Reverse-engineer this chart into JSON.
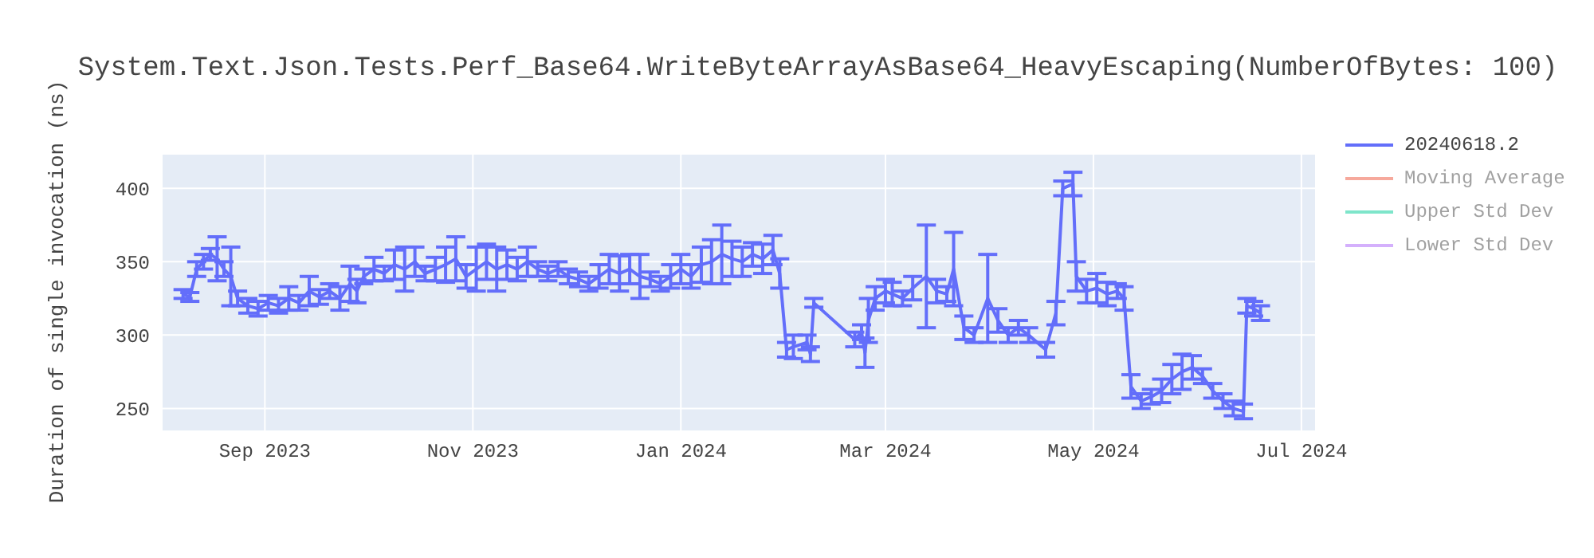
{
  "chart_data": {
    "type": "line",
    "title": "System.Text.Json.Tests.Perf_Base64.WriteByteArrayAsBase64_HeavyEscaping(NumberOfBytes: 100)",
    "ylabel": "Duration of single invocation (ns)",
    "x": [
      "2023-08-08",
      "2023-08-10",
      "2023-08-12",
      "2023-08-14",
      "2023-08-16",
      "2023-08-18",
      "2023-08-20",
      "2023-08-22",
      "2023-08-24",
      "2023-08-27",
      "2023-08-30",
      "2023-09-02",
      "2023-09-05",
      "2023-09-08",
      "2023-09-11",
      "2023-09-14",
      "2023-09-17",
      "2023-09-20",
      "2023-09-23",
      "2023-09-26",
      "2023-09-28",
      "2023-09-30",
      "2023-10-03",
      "2023-10-06",
      "2023-10-09",
      "2023-10-12",
      "2023-10-15",
      "2023-10-18",
      "2023-10-21",
      "2023-10-24",
      "2023-10-27",
      "2023-10-30",
      "2023-11-02",
      "2023-11-05",
      "2023-11-08",
      "2023-11-11",
      "2023-11-14",
      "2023-11-17",
      "2023-11-20",
      "2023-11-23",
      "2023-11-26",
      "2023-11-29",
      "2023-12-02",
      "2023-12-05",
      "2023-12-08",
      "2023-12-11",
      "2023-12-14",
      "2023-12-17",
      "2023-12-20",
      "2023-12-23",
      "2023-12-26",
      "2023-12-29",
      "2024-01-01",
      "2024-01-04",
      "2024-01-07",
      "2024-01-10",
      "2024-01-13",
      "2024-01-16",
      "2024-01-19",
      "2024-01-22",
      "2024-01-25",
      "2024-01-28",
      "2024-01-30",
      "2024-02-01",
      "2024-02-03",
      "2024-02-07",
      "2024-02-08",
      "2024-02-09",
      "2024-02-21",
      "2024-02-23",
      "2024-02-24",
      "2024-02-25",
      "2024-02-27",
      "2024-03-01",
      "2024-03-03",
      "2024-03-06",
      "2024-03-09",
      "2024-03-13",
      "2024-03-16",
      "2024-03-19",
      "2024-03-21",
      "2024-03-24",
      "2024-03-27",
      "2024-03-31",
      "2024-04-03",
      "2024-04-06",
      "2024-04-09",
      "2024-04-12",
      "2024-04-17",
      "2024-04-20",
      "2024-04-22",
      "2024-04-25",
      "2024-04-26",
      "2024-04-29",
      "2024-05-02",
      "2024-05-05",
      "2024-05-08",
      "2024-05-10",
      "2024-05-12",
      "2024-05-15",
      "2024-05-18",
      "2024-05-21",
      "2024-05-24",
      "2024-05-27",
      "2024-05-30",
      "2024-06-02",
      "2024-06-05",
      "2024-06-08",
      "2024-06-11",
      "2024-06-14",
      "2024-06-15",
      "2024-06-17",
      "2024-06-19"
    ],
    "series": [
      {
        "name": "20240618.2",
        "color": "#636efa",
        "values": [
          328,
          326,
          345,
          350,
          355,
          352,
          345,
          340,
          325,
          320,
          318,
          322,
          320,
          325,
          322,
          330,
          326,
          330,
          325,
          335,
          330,
          340,
          345,
          342,
          348,
          345,
          350,
          342,
          345,
          348,
          352,
          340,
          345,
          350,
          345,
          348,
          345,
          350,
          345,
          342,
          345,
          340,
          338,
          335,
          340,
          345,
          342,
          345,
          340,
          338,
          335,
          340,
          345,
          340,
          348,
          350,
          355,
          352,
          350,
          355,
          352,
          358,
          342,
          290,
          292,
          295,
          287,
          322,
          297,
          302,
          288,
          310,
          325,
          330,
          328,
          325,
          332,
          340,
          330,
          328,
          345,
          305,
          300,
          325,
          310,
          300,
          305,
          300,
          290,
          315,
          400,
          403,
          340,
          330,
          332,
          328,
          330,
          325,
          265,
          255,
          258,
          262,
          270,
          275,
          278,
          272,
          262,
          255,
          250,
          248,
          320,
          318,
          315
        ],
        "errors": [
          3,
          3,
          5,
          5,
          4,
          15,
          5,
          20,
          5,
          5,
          5,
          5,
          5,
          8,
          5,
          10,
          5,
          5,
          8,
          12,
          8,
          5,
          8,
          5,
          10,
          15,
          10,
          5,
          8,
          12,
          15,
          8,
          15,
          12,
          15,
          10,
          8,
          10,
          5,
          5,
          5,
          5,
          5,
          5,
          8,
          10,
          12,
          10,
          15,
          5,
          5,
          8,
          10,
          8,
          12,
          15,
          20,
          12,
          10,
          8,
          10,
          10,
          10,
          5,
          8,
          5,
          5,
          3,
          5,
          5,
          10,
          15,
          8,
          8,
          8,
          5,
          8,
          35,
          8,
          5,
          25,
          8,
          5,
          30,
          8,
          5,
          5,
          5,
          5,
          8,
          5,
          8,
          10,
          8,
          10,
          8,
          5,
          8,
          8,
          5,
          5,
          8,
          10,
          12,
          8,
          5,
          5,
          5,
          5,
          5,
          5,
          5,
          5
        ]
      },
      {
        "name": "Moving Average",
        "color": "#ef553b",
        "values": [
          null,
          null,
          null,
          null,
          null,
          null,
          null,
          null,
          null,
          null,
          null,
          null,
          null,
          null,
          null,
          null,
          null,
          null,
          null,
          null,
          null,
          null,
          null,
          null,
          null,
          null,
          null,
          null,
          null,
          null,
          null,
          null,
          null,
          null,
          null,
          null,
          null,
          null,
          null,
          null,
          null,
          null,
          null,
          null,
          null,
          null,
          null,
          null,
          null,
          null,
          null,
          null,
          null,
          null,
          null,
          null,
          null,
          null,
          null,
          null,
          null,
          null,
          null,
          null,
          null,
          null,
          null,
          null,
          null,
          null,
          null,
          null,
          null,
          null,
          null,
          null,
          null,
          null,
          null,
          null,
          null,
          null,
          null,
          null,
          null,
          null,
          null,
          null,
          null,
          null,
          null,
          null,
          null,
          null,
          null,
          null,
          null,
          null,
          null,
          null,
          null,
          null,
          null,
          null,
          null,
          null,
          null,
          null,
          null,
          null,
          null,
          null,
          null
        ]
      },
      {
        "name": "Upper Std Dev",
        "color": "#00cc96",
        "values": [
          null,
          null,
          null,
          null,
          null,
          null,
          null,
          null,
          null,
          null,
          null,
          null,
          null,
          null,
          null,
          null,
          null,
          null,
          null,
          null,
          null,
          null,
          null,
          null,
          null,
          null,
          null,
          null,
          null,
          null,
          null,
          null,
          null,
          null,
          null,
          null,
          null,
          null,
          null,
          null,
          null,
          null,
          null,
          null,
          null,
          null,
          null,
          null,
          null,
          null,
          null,
          null,
          null,
          null,
          null,
          null,
          null,
          null,
          null,
          null,
          null,
          null,
          null,
          null,
          null,
          null,
          null,
          null,
          null,
          null,
          null,
          null,
          null,
          null,
          null,
          null,
          null,
          null,
          null,
          null,
          null,
          null,
          null,
          null,
          null,
          null,
          null,
          null,
          null,
          null,
          null,
          null,
          null,
          null,
          null,
          null,
          null,
          null,
          null,
          null,
          null,
          null,
          null,
          null,
          null,
          null,
          null,
          null,
          null,
          null,
          null,
          null,
          null
        ]
      },
      {
        "name": "Lower Std Dev",
        "color": "#ab63fa",
        "values": [
          null,
          null,
          null,
          null,
          null,
          null,
          null,
          null,
          null,
          null,
          null,
          null,
          null,
          null,
          null,
          null,
          null,
          null,
          null,
          null,
          null,
          null,
          null,
          null,
          null,
          null,
          null,
          null,
          null,
          null,
          null,
          null,
          null,
          null,
          null,
          null,
          null,
          null,
          null,
          null,
          null,
          null,
          null,
          null,
          null,
          null,
          null,
          null,
          null,
          null,
          null,
          null,
          null,
          null,
          null,
          null,
          null,
          null,
          null,
          null,
          null,
          null,
          null,
          null,
          null,
          null,
          null,
          null,
          null,
          null,
          null,
          null,
          null,
          null,
          null,
          null,
          null,
          null,
          null,
          null,
          null,
          null,
          null,
          null,
          null,
          null,
          null,
          null,
          null,
          null,
          null,
          null,
          null,
          null,
          null,
          null,
          null,
          null,
          null,
          null,
          null,
          null,
          null,
          null,
          null,
          null,
          null,
          null,
          null,
          null,
          null,
          null,
          null
        ]
      }
    ],
    "xlim": [
      "2023-08-02",
      "2024-07-05"
    ],
    "xticks": [
      {
        "value": "2023-09-01",
        "label": "Sep 2023"
      },
      {
        "value": "2023-11-01",
        "label": "Nov 2023"
      },
      {
        "value": "2024-01-01",
        "label": "Jan 2024"
      },
      {
        "value": "2024-03-01",
        "label": "Mar 2024"
      },
      {
        "value": "2024-05-01",
        "label": "May 2024"
      },
      {
        "value": "2024-07-01",
        "label": "Jul 2024"
      }
    ],
    "ylim": [
      235,
      423
    ],
    "yticks": [
      250,
      300,
      350,
      400
    ],
    "grid": true,
    "legend": "top right"
  }
}
